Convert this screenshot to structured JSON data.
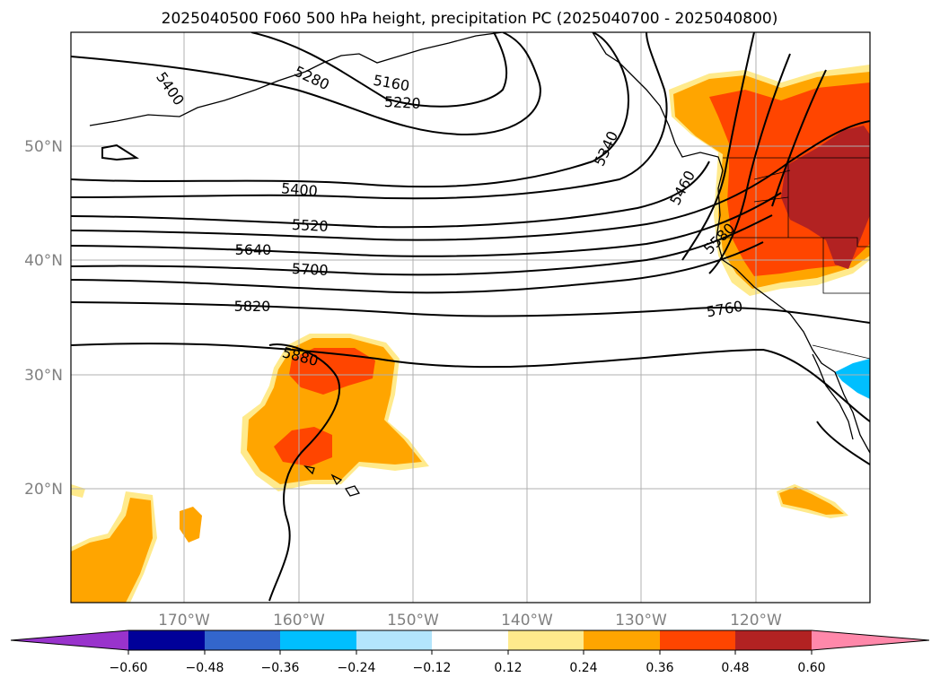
{
  "title": "2025040500 F060 500 hPa height, precipitation PC (2025040700 - 2025040800)",
  "map": {
    "lon_ticks": [
      "170°W",
      "160°W",
      "150°W",
      "140°W",
      "130°W",
      "120°W"
    ],
    "lat_ticks": [
      "50°N",
      "40°N",
      "30°N",
      "20°N"
    ],
    "extent": {
      "lon": [
        -180,
        -110
      ],
      "lat": [
        10,
        60
      ]
    }
  },
  "contour_labels": [
    "5400",
    "5280",
    "5160",
    "5220",
    "5340",
    "5460",
    "5400",
    "5520",
    "5640",
    "5580",
    "5700",
    "5820",
    "5760",
    "5880"
  ],
  "colorbar": {
    "ticks": [
      "−0.60",
      "−0.48",
      "−0.36",
      "−0.24",
      "−0.12",
      "0.12",
      "0.24",
      "0.36",
      "0.48",
      "0.60"
    ],
    "colors": [
      "#9933cc",
      "#000099",
      "#3366cc",
      "#00bfff",
      "#b3e5fc",
      "#ffffff",
      "#ffea8c",
      "#ffa500",
      "#ff4500",
      "#b22222",
      "#ff88aa"
    ]
  }
}
